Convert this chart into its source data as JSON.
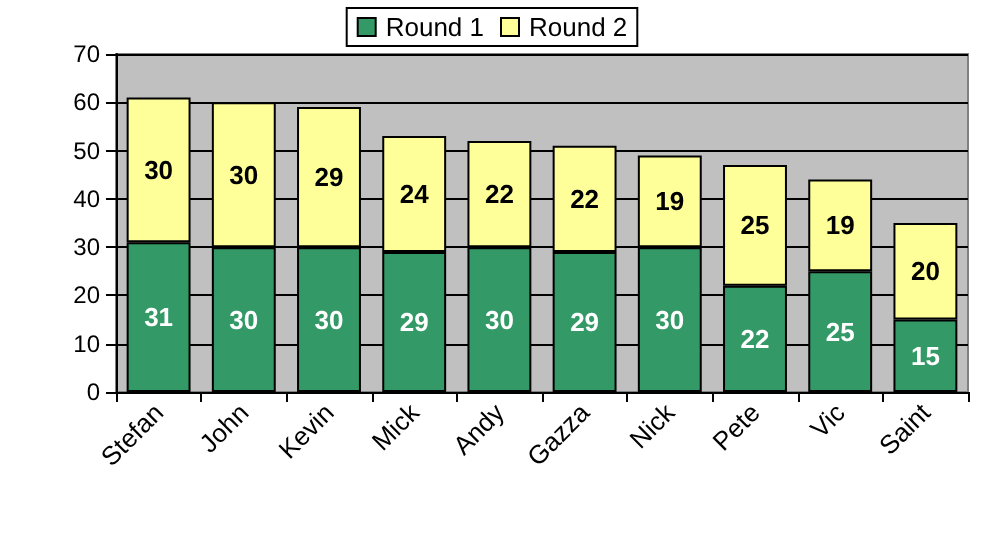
{
  "chart_data": {
    "type": "bar",
    "stacked": true,
    "categories": [
      "Stefan",
      "John",
      "Kevin",
      "Mick",
      "Andy",
      "Gazza",
      "Nick",
      "Pete",
      "Vic",
      "Saint"
    ],
    "series": [
      {
        "name": "Round 1",
        "color": "#339966",
        "values": [
          31,
          30,
          30,
          29,
          30,
          29,
          30,
          22,
          25,
          15
        ]
      },
      {
        "name": "Round 2",
        "color": "#ffff99",
        "values": [
          30,
          30,
          29,
          24,
          22,
          22,
          19,
          25,
          19,
          20
        ]
      }
    ],
    "ylim": [
      0,
      70
    ],
    "yticks": [
      0,
      10,
      20,
      30,
      40,
      50,
      60,
      70
    ],
    "grid": "y",
    "legend": "top",
    "data_labels": true
  }
}
